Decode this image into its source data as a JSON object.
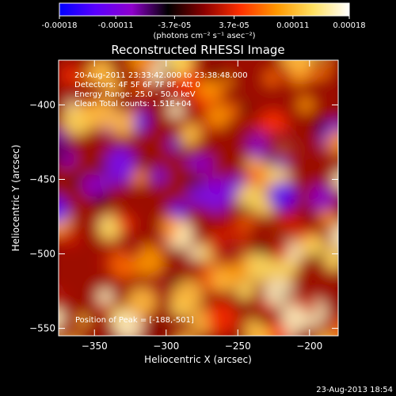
{
  "colorbar": {
    "ticks": [
      "-0.00018",
      "-0.00011",
      "-3.7e-05",
      "3.7e-05",
      "0.00011",
      "0.00018"
    ],
    "tick_values": [
      -0.00018,
      -0.00011,
      -3.7e-05,
      3.7e-05,
      0.00011,
      0.00018
    ],
    "range": [
      -0.00018,
      0.00018
    ],
    "units": "(photons cm⁻² s⁻¹ asec⁻²)"
  },
  "chart_data": {
    "type": "heatmap",
    "title": "Reconstructed RHESSI Image",
    "xlabel": "Heliocentric X (arcsec)",
    "ylabel": "Heliocentric Y (arcsec)",
    "xlim": [
      -375,
      -180
    ],
    "ylim": [
      -555,
      -370
    ],
    "xticks": [
      -350,
      -300,
      -250,
      -200
    ],
    "xtick_labels": [
      "−350",
      "−300",
      "−250",
      "−200"
    ],
    "yticks": [
      -400,
      -450,
      -500,
      -550
    ],
    "ytick_labels": [
      "−400",
      "−450",
      "−500",
      "−550"
    ],
    "colormap": [
      "#0000ff",
      "#5a00ff",
      "#8e00cc",
      "#000000",
      "#8c0000",
      "#ff3000",
      "#ff9800",
      "#ffe060",
      "#ffffff"
    ],
    "annotations": [
      "20-Aug-2011 23:33:42.000 to 23:38:48.000",
      "Detectors: 4F 5F 6F 7F 8F, Att 0",
      "Energy Range: 25.0 - 50.0 keV",
      "Clean     Total counts: 1.51E+04"
    ],
    "peak_label": "Position of Peak = [-188,-501]",
    "peak": [
      -188,
      -501
    ]
  },
  "footer": {
    "date": "23-Aug-2013 18:54"
  }
}
